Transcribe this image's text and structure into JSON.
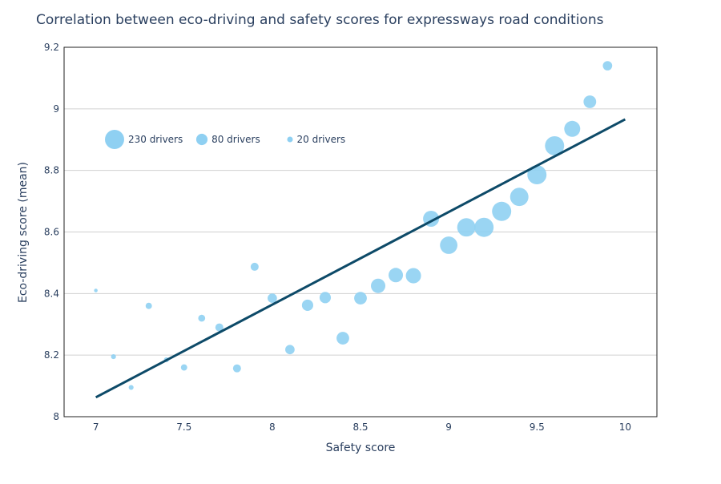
{
  "chart_data": {
    "type": "scatter",
    "title": "Correlation between eco-driving and safety scores for expressways road conditions",
    "xlabel": "Safety score",
    "ylabel": "Eco-driving score (mean)",
    "xlim": [
      6.82,
      10.18
    ],
    "ylim": [
      8,
      9.2
    ],
    "xticks": [
      7,
      7.5,
      8,
      8.5,
      9,
      9.5,
      10
    ],
    "xtick_labels": [
      "7",
      "7.5",
      "8",
      "8.5",
      "9",
      "9.5",
      "10"
    ],
    "yticks": [
      8,
      8.2,
      8.4,
      8.6,
      8.8,
      9,
      9.2
    ],
    "ytick_labels": [
      "8",
      "8.2",
      "8.4",
      "8.6",
      "8.8",
      "9",
      "9.2"
    ],
    "grid": "horizontal",
    "marker_color": "#8fd0f2",
    "line_color": "#0d4a68",
    "size_legend": [
      {
        "label": "230 drivers",
        "drivers": 230
      },
      {
        "label": "80 drivers",
        "drivers": 80
      },
      {
        "label": "20 drivers",
        "drivers": 20
      }
    ],
    "points": [
      {
        "x": 7.0,
        "y": 8.41,
        "drivers": 8
      },
      {
        "x": 7.1,
        "y": 8.195,
        "drivers": 15
      },
      {
        "x": 7.2,
        "y": 8.095,
        "drivers": 15
      },
      {
        "x": 7.3,
        "y": 8.36,
        "drivers": 25
      },
      {
        "x": 7.4,
        "y": 8.185,
        "drivers": 15
      },
      {
        "x": 7.5,
        "y": 8.16,
        "drivers": 25
      },
      {
        "x": 7.6,
        "y": 8.32,
        "drivers": 30
      },
      {
        "x": 7.7,
        "y": 8.29,
        "drivers": 40
      },
      {
        "x": 7.8,
        "y": 8.157,
        "drivers": 40
      },
      {
        "x": 7.9,
        "y": 8.487,
        "drivers": 40
      },
      {
        "x": 8.0,
        "y": 8.385,
        "drivers": 55
      },
      {
        "x": 8.1,
        "y": 8.218,
        "drivers": 55
      },
      {
        "x": 8.2,
        "y": 8.362,
        "drivers": 80
      },
      {
        "x": 8.3,
        "y": 8.387,
        "drivers": 80
      },
      {
        "x": 8.4,
        "y": 8.255,
        "drivers": 100
      },
      {
        "x": 8.5,
        "y": 8.385,
        "drivers": 100
      },
      {
        "x": 8.6,
        "y": 8.425,
        "drivers": 130
      },
      {
        "x": 8.7,
        "y": 8.46,
        "drivers": 130
      },
      {
        "x": 8.8,
        "y": 8.458,
        "drivers": 145
      },
      {
        "x": 8.9,
        "y": 8.643,
        "drivers": 160
      },
      {
        "x": 9.0,
        "y": 8.557,
        "drivers": 190
      },
      {
        "x": 9.1,
        "y": 8.615,
        "drivers": 210
      },
      {
        "x": 9.2,
        "y": 8.615,
        "drivers": 230
      },
      {
        "x": 9.3,
        "y": 8.667,
        "drivers": 230
      },
      {
        "x": 9.4,
        "y": 8.714,
        "drivers": 210
      },
      {
        "x": 9.5,
        "y": 8.786,
        "drivers": 230
      },
      {
        "x": 9.6,
        "y": 8.88,
        "drivers": 230
      },
      {
        "x": 9.7,
        "y": 8.935,
        "drivers": 160
      },
      {
        "x": 9.8,
        "y": 9.023,
        "drivers": 100
      },
      {
        "x": 9.9,
        "y": 9.14,
        "drivers": 55
      }
    ],
    "trendline": {
      "x": [
        7,
        10
      ],
      "y": [
        8.063,
        8.966
      ]
    }
  }
}
